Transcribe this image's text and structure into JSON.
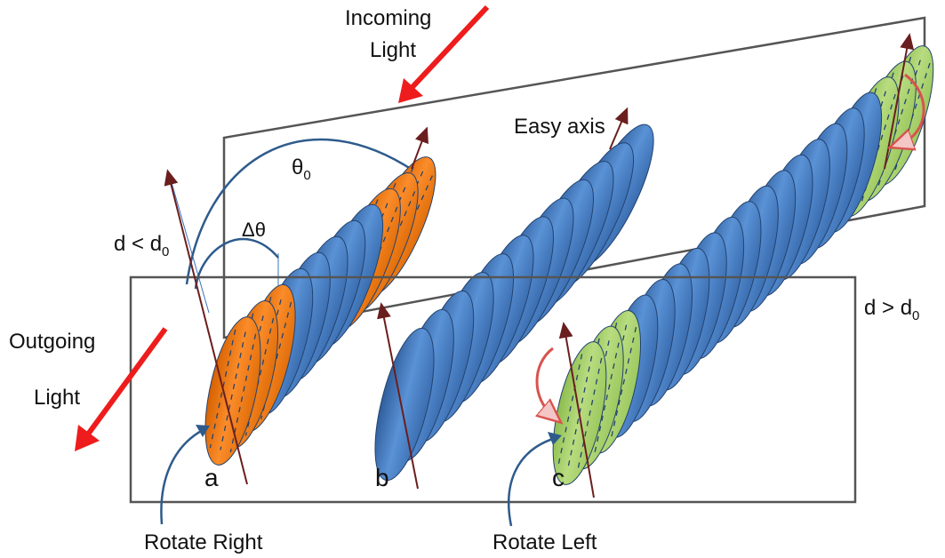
{
  "labels": {
    "incoming": [
      "Incoming",
      "Light"
    ],
    "outgoing": [
      "Outgoing",
      "Light"
    ],
    "easy_axis": "Easy axis",
    "theta0_sym": "θ",
    "theta0_sub": "0",
    "dtheta": "Δθ",
    "d_less": "d < d",
    "d_less_sub": "0",
    "d_greater": "d > d",
    "d_greater_sub": "0",
    "a": "a",
    "b": "b",
    "c": "c",
    "rotate_right": "Rotate Right",
    "rotate_left": "Rotate Left"
  },
  "colors": {
    "blue": "#4a7fc6",
    "orange": "#f07a12",
    "green": "#a6cf6a",
    "red_arrow": "#ee1c1c",
    "axis": "#6b1e1e",
    "curve": "#2e5b8c",
    "plane": "#555555"
  }
}
